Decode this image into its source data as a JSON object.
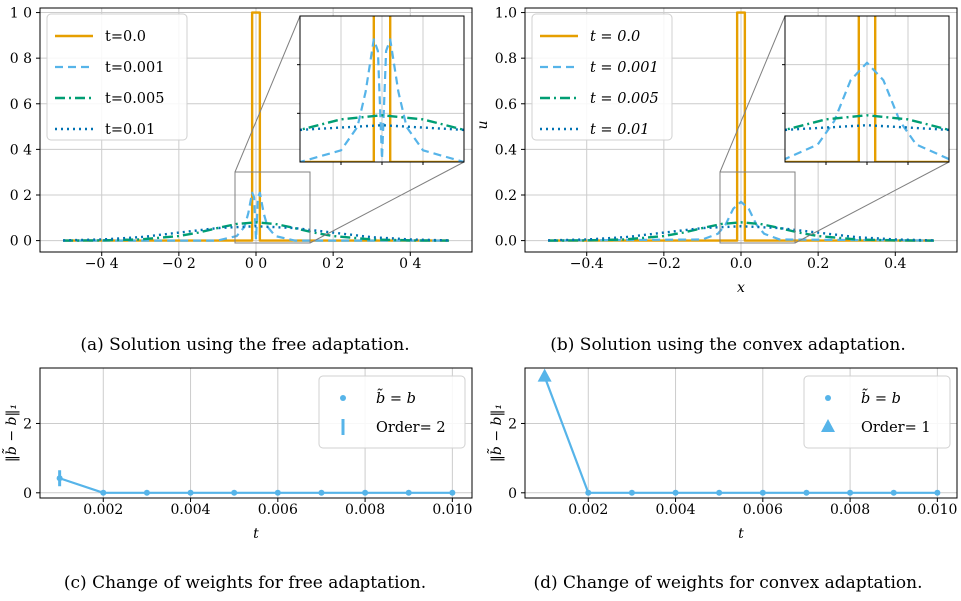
{
  "colors": {
    "orange": "#E69F00",
    "blue": "#56B4E9",
    "green": "#009E73",
    "darkblue": "#0072B2",
    "grid": "#cccccc",
    "inset_lines": "#808080"
  },
  "captions": {
    "a": "(a) Solution using the free adaptation.",
    "b": "(b) Solution using the convex adaptation.",
    "c": "(c) Change of weights for free adaptation.",
    "d": "(d) Change of weights for convex adaptation."
  },
  "chart_data": [
    {
      "id": "a",
      "type": "line",
      "xlabel": "",
      "ylabel": "",
      "xlim": [
        -0.56,
        0.56
      ],
      "ylim": [
        -0.05,
        1.02
      ],
      "xtick_values": [
        -0.4,
        -0.2,
        0.0,
        0.2,
        0.4
      ],
      "xtick_labels": [
        "−0 4",
        "−0 2",
        "0 0",
        "0 2",
        "0 4"
      ],
      "ytick_values": [
        0.0,
        0.2,
        0.4,
        0.6,
        0.8,
        1.0
      ],
      "ytick_labels": [
        "0 0",
        "0 2",
        "0 4",
        "0 6",
        "0 8",
        "1 0"
      ],
      "grid": true,
      "legend_position": "upper-left",
      "series": [
        {
          "name": "t=0.0",
          "x": [
            -0.5,
            -0.01,
            -0.01,
            0.01,
            0.01,
            0.5
          ],
          "y": [
            0,
            0,
            1,
            1,
            0,
            0
          ]
        },
        {
          "name": "t=0.001",
          "x": [
            -0.5,
            -0.1,
            -0.05,
            -0.03,
            -0.02,
            -0.01,
            -0.005,
            0.0,
            0.005,
            0.01,
            0.02,
            0.03,
            0.05,
            0.1,
            0.5
          ],
          "y": [
            0,
            0,
            0.02,
            0.06,
            0.12,
            0.21,
            0.19,
            0.005,
            0.19,
            0.21,
            0.12,
            0.06,
            0.02,
            0,
            0
          ]
        },
        {
          "name": "t=0.005",
          "x": [
            -0.5,
            -0.4,
            -0.3,
            -0.2,
            -0.15,
            -0.1,
            -0.05,
            0.0,
            0.05,
            0.1,
            0.15,
            0.2,
            0.3,
            0.4,
            0.5
          ],
          "y": [
            0.0,
            0.001,
            0.005,
            0.02,
            0.035,
            0.055,
            0.073,
            0.08,
            0.073,
            0.055,
            0.035,
            0.02,
            0.005,
            0.001,
            0.0
          ]
        },
        {
          "name": "t=0.01",
          "x": [
            -0.5,
            -0.4,
            -0.3,
            -0.2,
            -0.1,
            0.0,
            0.1,
            0.2,
            0.3,
            0.4,
            0.5
          ],
          "y": [
            0.001,
            0.005,
            0.015,
            0.035,
            0.055,
            0.063,
            0.055,
            0.035,
            0.015,
            0.005,
            0.001
          ]
        }
      ],
      "inset": {
        "xlim": [
          -0.1,
          0.1
        ],
        "ylim": [
          0.0,
          0.25
        ]
      }
    },
    {
      "id": "b",
      "type": "line",
      "xlabel": "x",
      "ylabel": "u",
      "xlim": [
        -0.56,
        0.56
      ],
      "ylim": [
        -0.05,
        1.02
      ],
      "xtick_values": [
        -0.4,
        -0.2,
        0.0,
        0.2,
        0.4
      ],
      "xtick_labels": [
        "−0.4",
        "−0.2",
        "0.0",
        "0.2",
        "0.4"
      ],
      "ytick_values": [
        0.0,
        0.2,
        0.4,
        0.6,
        0.8,
        1.0
      ],
      "ytick_labels": [
        "0.0",
        "0.2",
        "0.4",
        "0.6",
        "0.8",
        "1.0"
      ],
      "grid": true,
      "legend_position": "upper-left",
      "series": [
        {
          "name": "t = 0.0",
          "x": [
            -0.5,
            -0.01,
            -0.01,
            0.01,
            0.01,
            0.5
          ],
          "y": [
            0,
            0,
            1,
            1,
            0,
            0
          ]
        },
        {
          "name": "t = 0.001",
          "x": [
            -0.5,
            -0.1,
            -0.06,
            -0.04,
            -0.02,
            0.0,
            0.02,
            0.04,
            0.06,
            0.1,
            0.5
          ],
          "y": [
            0,
            0.005,
            0.03,
            0.07,
            0.14,
            0.17,
            0.14,
            0.07,
            0.03,
            0.005,
            0
          ]
        },
        {
          "name": "t = 0.005",
          "x": [
            -0.5,
            -0.4,
            -0.3,
            -0.2,
            -0.15,
            -0.1,
            -0.05,
            0.0,
            0.05,
            0.1,
            0.15,
            0.2,
            0.3,
            0.4,
            0.5
          ],
          "y": [
            0.0,
            0.001,
            0.005,
            0.02,
            0.035,
            0.055,
            0.073,
            0.08,
            0.073,
            0.055,
            0.035,
            0.02,
            0.005,
            0.001,
            0.0
          ]
        },
        {
          "name": "t = 0.01",
          "x": [
            -0.5,
            -0.4,
            -0.3,
            -0.2,
            -0.1,
            0.0,
            0.1,
            0.2,
            0.3,
            0.4,
            0.5
          ],
          "y": [
            0.001,
            0.005,
            0.015,
            0.035,
            0.055,
            0.063,
            0.055,
            0.035,
            0.015,
            0.005,
            0.001
          ]
        }
      ],
      "inset": {
        "xlim": [
          -0.1,
          0.1
        ],
        "ylim": [
          0.0,
          0.25
        ]
      }
    },
    {
      "id": "c",
      "type": "line",
      "xlabel": "t",
      "ylabel": "‖b̃ − b‖₁",
      "xlim": [
        0.00055,
        0.01045
      ],
      "ylim": [
        -0.15,
        3.6
      ],
      "xtick_values": [
        0.002,
        0.004,
        0.006,
        0.008,
        0.01
      ],
      "xtick_labels": [
        "0.002",
        "0.004",
        "0.006",
        "0.008",
        "0.010"
      ],
      "ytick_values": [
        0,
        2
      ],
      "ytick_labels": [
        "0",
        "2"
      ],
      "grid": true,
      "legend_position": "upper-right",
      "x": [
        0.001,
        0.002,
        0.003,
        0.004,
        0.005,
        0.006,
        0.007,
        0.008,
        0.009,
        0.01
      ],
      "series": [
        {
          "name": "b̃ = b",
          "values": [
            0.42,
            0,
            0,
            0,
            0,
            0,
            0,
            0,
            0,
            0
          ]
        }
      ],
      "order_marker": {
        "label": "Order= 2",
        "x": 0.001,
        "y": 0.42,
        "shape": "vline"
      }
    },
    {
      "id": "d",
      "type": "line",
      "xlabel": "t",
      "ylabel": "‖b̃ − b‖₁",
      "xlim": [
        0.00055,
        0.01045
      ],
      "ylim": [
        -0.15,
        3.6
      ],
      "xtick_values": [
        0.002,
        0.004,
        0.006,
        0.008,
        0.01
      ],
      "xtick_labels": [
        "0.002",
        "0.004",
        "0.006",
        "0.008",
        "0.010"
      ],
      "ytick_values": [
        0,
        2
      ],
      "ytick_labels": [
        "0",
        "2"
      ],
      "grid": true,
      "legend_position": "upper-right",
      "x": [
        0.001,
        0.002,
        0.003,
        0.004,
        0.005,
        0.006,
        0.007,
        0.008,
        0.009,
        0.01
      ],
      "series": [
        {
          "name": "b̃ = b",
          "values": [
            3.35,
            0,
            0,
            0,
            0,
            0,
            0,
            0,
            0,
            0
          ]
        }
      ],
      "order_marker": {
        "label": "Order= 1",
        "x": 0.001,
        "y": 3.35,
        "shape": "triangle"
      }
    }
  ]
}
